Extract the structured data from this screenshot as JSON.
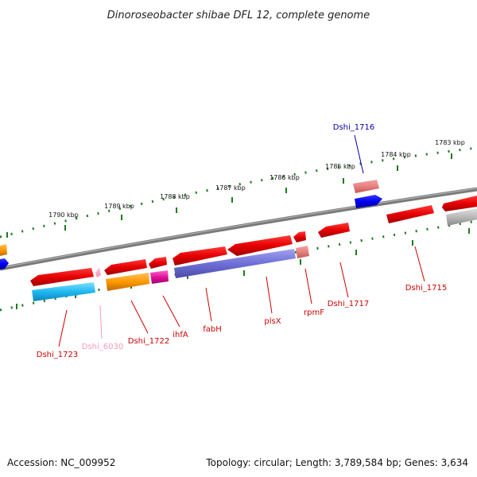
{
  "title": "Dinoroseobacter shibae DFL 12, complete genome",
  "footer": {
    "accession": "Accession: NC_009952",
    "topology": "Topology: circular; Length: 3,789,584 bp; Genes: 3,634"
  },
  "colors": {
    "backbone": "#7a7a7a",
    "ticks": "#1f7a1f",
    "label_red": "#cc0000",
    "label_pink": "#f29ab8",
    "label_blue": "#0000aa"
  },
  "tick_labels": [
    "1790 kbp",
    "1789 kbp",
    "1788 kbp",
    "1787 kbp",
    "1786 kbp",
    "1785 kbp",
    "1784 kbp",
    "1783 kbp"
  ],
  "gene_labels": [
    {
      "text": "Dshi_1716",
      "color": "label_blue"
    },
    {
      "text": "Dshi_1715",
      "color": "label_red"
    },
    {
      "text": "Dshi_1717",
      "color": "label_red"
    },
    {
      "text": "rpmF",
      "color": "label_red"
    },
    {
      "text": "plsX",
      "color": "label_red"
    },
    {
      "text": "fabH",
      "color": "label_red"
    },
    {
      "text": "ihfA",
      "color": "label_red"
    },
    {
      "text": "Dshi_1722",
      "color": "label_red"
    },
    {
      "text": "Dshi_6030",
      "color": "label_pink"
    },
    {
      "text": "Dshi_1723",
      "color": "label_red"
    }
  ]
}
